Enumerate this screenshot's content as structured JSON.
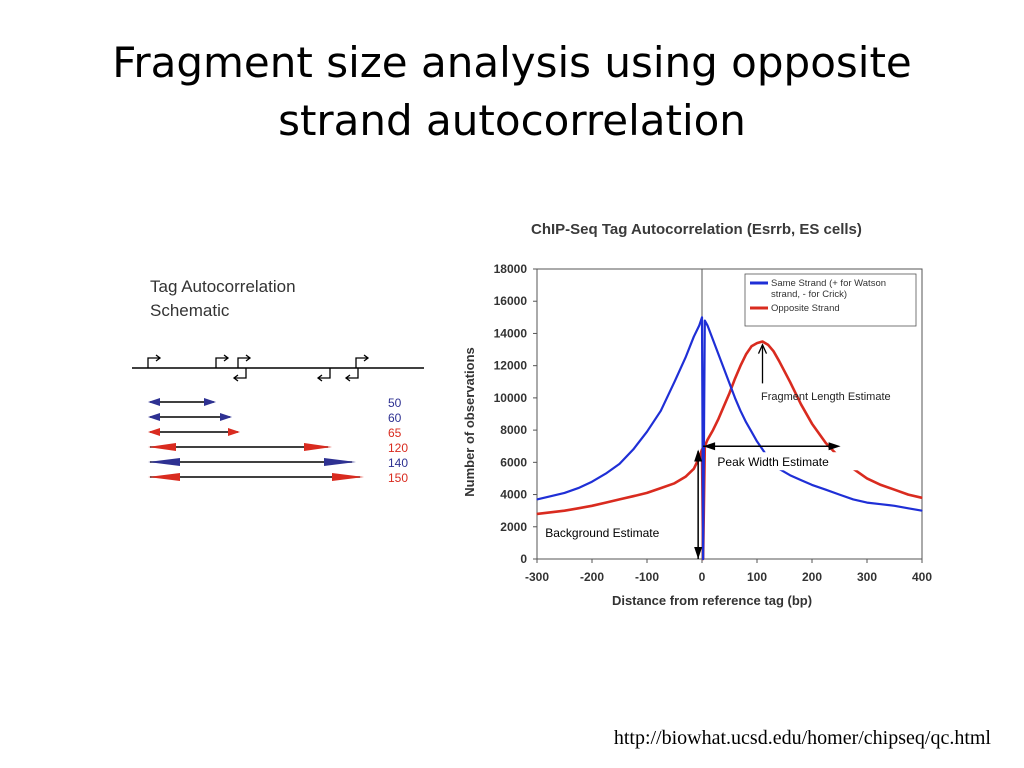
{
  "slide": {
    "title_line1": "Fragment size analysis using opposite",
    "title_line2": "strand autocorrelation",
    "source_url": "http://biowhat.ucsd.edu/homer/chipseq/qc.html"
  },
  "schematic": {
    "title_line1": "Tag Autocorrelation",
    "title_line2": "Schematic",
    "rows": [
      {
        "label": "50",
        "color": "#2e3192",
        "arrow": "#2e3192"
      },
      {
        "label": "60",
        "color": "#2e3192",
        "arrow": "#2e3192"
      },
      {
        "label": "65",
        "color": "#d92b1f",
        "arrow": "#d92b1f"
      },
      {
        "label": "120",
        "color": "#d92b1f",
        "arrow": "#d92b1f"
      },
      {
        "label": "140",
        "color": "#2e3192",
        "arrow": "#2e3192"
      },
      {
        "label": "150",
        "color": "#d92b1f",
        "arrow": "#d92b1f"
      }
    ]
  },
  "chart_data": {
    "type": "line",
    "title": "ChIP-Seq Tag Autocorrelation (Esrrb, ES cells)",
    "xlabel": "Distance from reference tag (bp)",
    "ylabel": "Number of observations",
    "xlim": [
      -300,
      400
    ],
    "ylim": [
      0,
      18000
    ],
    "xticks": [
      -300,
      -200,
      -100,
      0,
      100,
      200,
      300,
      400
    ],
    "yticks": [
      0,
      2000,
      4000,
      6000,
      8000,
      10000,
      12000,
      14000,
      16000,
      18000
    ],
    "grid": false,
    "legend_position": "top-right",
    "series": [
      {
        "name": "Same Strand (+ for Watson strand, - for Crick)",
        "color": "#1f2fd6",
        "x": [
          -300,
          -275,
          -250,
          -225,
          -200,
          -175,
          -150,
          -125,
          -100,
          -75,
          -50,
          -30,
          -15,
          -5,
          0,
          2,
          5,
          10,
          20,
          30,
          40,
          50,
          60,
          70,
          80,
          90,
          100,
          110,
          120,
          130,
          140,
          160,
          180,
          200,
          225,
          250,
          275,
          300,
          325,
          350,
          375,
          400
        ],
        "y": [
          3700,
          3900,
          4100,
          4400,
          4800,
          5300,
          5900,
          6800,
          7900,
          9200,
          11000,
          12500,
          13800,
          14500,
          15000,
          0,
          14800,
          14500,
          13600,
          12700,
          11800,
          10900,
          10000,
          9200,
          8500,
          7900,
          7300,
          6800,
          6300,
          5900,
          5600,
          5200,
          4900,
          4600,
          4300,
          4000,
          3700,
          3500,
          3400,
          3300,
          3150,
          3000
        ]
      },
      {
        "name": "Opposite Strand",
        "color": "#d92b1f",
        "x": [
          -300,
          -275,
          -250,
          -225,
          -200,
          -175,
          -150,
          -125,
          -100,
          -75,
          -50,
          -30,
          -15,
          -5,
          0,
          2,
          5,
          10,
          20,
          30,
          40,
          50,
          60,
          70,
          80,
          90,
          100,
          110,
          120,
          130,
          140,
          160,
          180,
          200,
          225,
          250,
          275,
          300,
          325,
          350,
          375,
          400
        ],
        "y": [
          2800,
          2900,
          3000,
          3150,
          3300,
          3500,
          3700,
          3900,
          4100,
          4400,
          4700,
          5100,
          5600,
          6300,
          6800,
          0,
          7000,
          7400,
          8000,
          8700,
          9500,
          10300,
          11200,
          12000,
          12700,
          13200,
          13400,
          13500,
          13300,
          12900,
          12300,
          11000,
          9600,
          8400,
          7200,
          6300,
          5600,
          5000,
          4600,
          4300,
          4000,
          3800
        ]
      }
    ],
    "annotations": [
      {
        "text": "Fragment Length Estimate"
      },
      {
        "text": "Peak Width Estimate"
      },
      {
        "text": "Background Estimate"
      }
    ]
  }
}
